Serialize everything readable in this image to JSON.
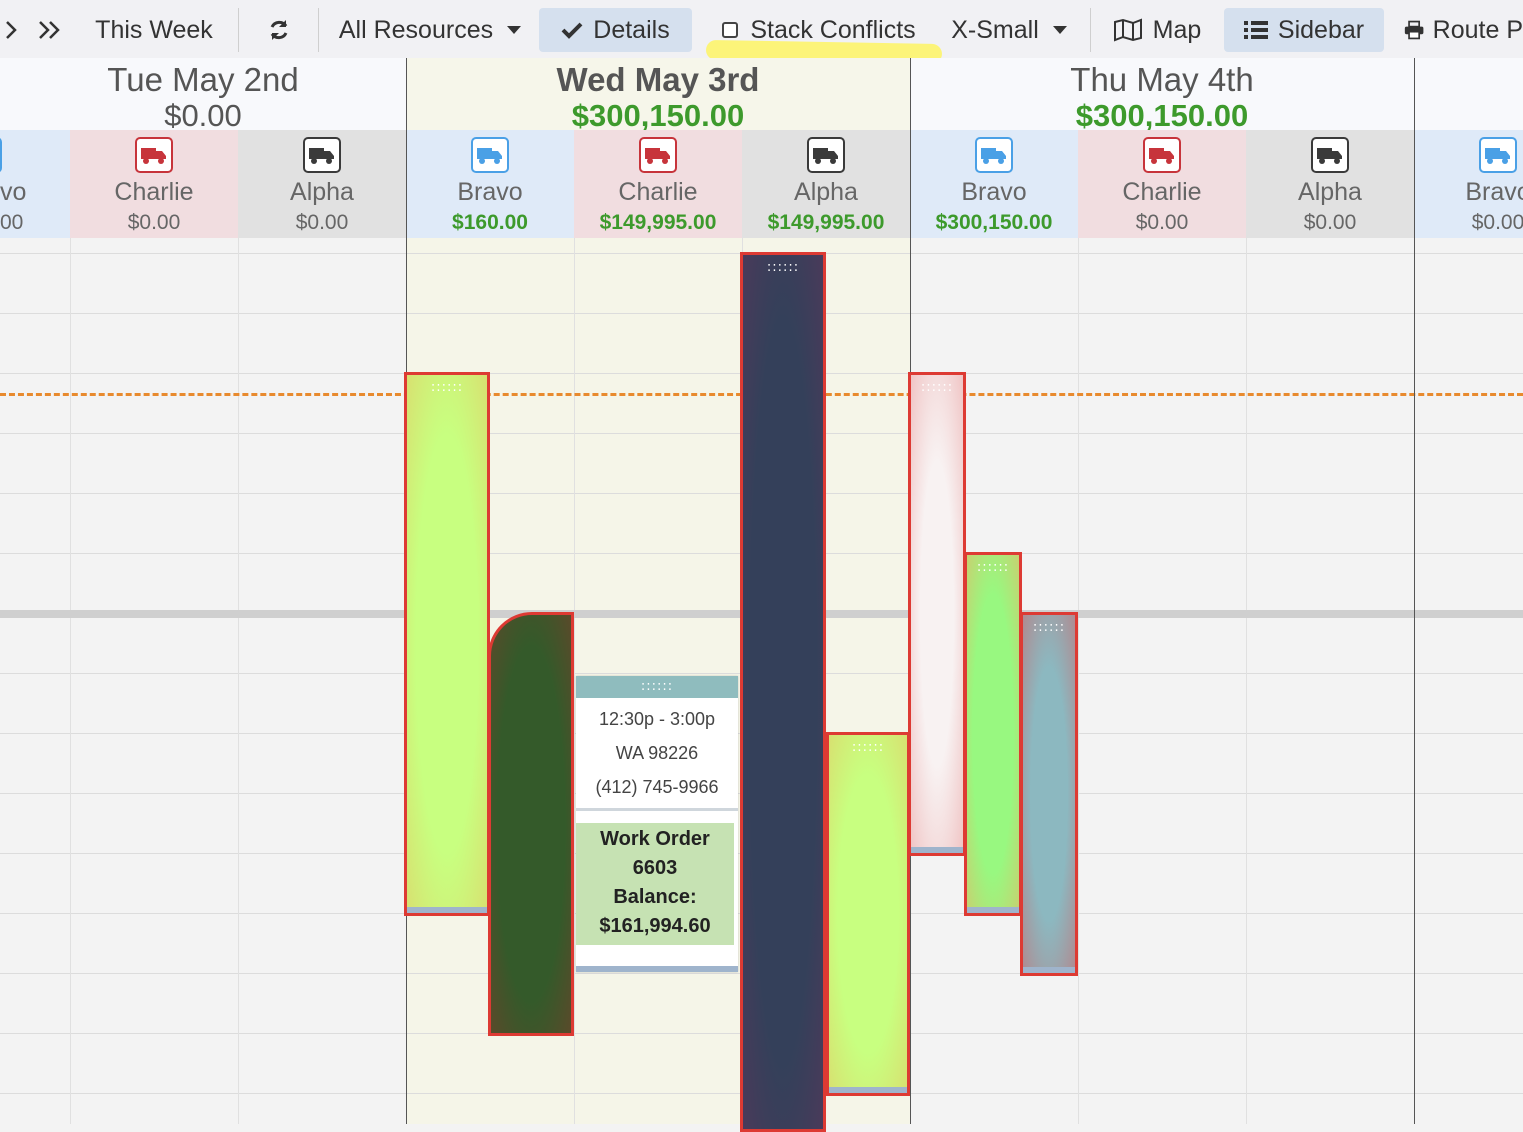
{
  "toolbar": {
    "this_week": "This Week",
    "all_resources": "All Resources",
    "details": "Details",
    "stack_conflicts": "Stack Conflicts",
    "size": "X-Small",
    "map": "Map",
    "sidebar": "Sidebar",
    "route": "Route P"
  },
  "days": [
    {
      "name": "Tue May 2nd",
      "total": "$0.00"
    },
    {
      "name": "Wed May 3rd",
      "total": "$300,150.00"
    },
    {
      "name": "Thu May 4th",
      "total": "$300,150.00"
    }
  ],
  "resources": {
    "partial_left": {
      "name": "vo",
      "amount": "00"
    },
    "tue_charlie": {
      "name": "Charlie",
      "amount": "$0.00"
    },
    "tue_alpha": {
      "name": "Alpha",
      "amount": "$0.00"
    },
    "wed_bravo": {
      "name": "Bravo",
      "amount": "$160.00"
    },
    "wed_charlie": {
      "name": "Charlie",
      "amount": "$149,995.00"
    },
    "wed_alpha": {
      "name": "Alpha",
      "amount": "$149,995.00"
    },
    "thu_bravo": {
      "name": "Bravo",
      "amount": "$300,150.00"
    },
    "thu_charlie": {
      "name": "Charlie",
      "amount": "$0.00"
    },
    "thu_alpha": {
      "name": "Alpha",
      "amount": "$0.00"
    },
    "partial_right": {
      "name": "Bravo",
      "amount": "$0.00"
    }
  },
  "colors": {
    "truck_blue": "#4aa0e6",
    "truck_red": "#c7343b",
    "truck_dark": "#3a3a3a",
    "money_green": "#3d9a2c",
    "event_border": "#dd3a33",
    "now_line": "#e88a2e"
  },
  "card": {
    "grip": "::::::",
    "time": "12:30p - 3:00p",
    "zip": "WA 98226",
    "phone": "(412) 745-9966",
    "work_order_line1": "Work Order",
    "work_order_line2": "6603",
    "balance_label": "Balance:",
    "balance_value": "$161,994.60"
  }
}
